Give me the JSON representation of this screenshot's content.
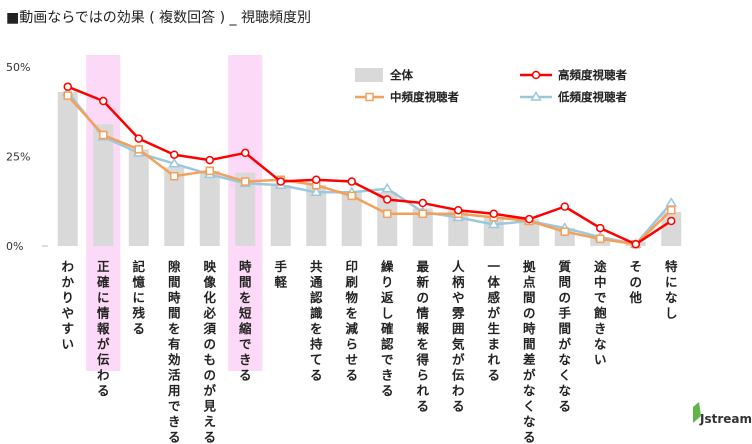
{
  "chart_data": {
    "type": "bar",
    "title": "■動画ならではの効果 ( 複数回答 ) _ 視聴頻度別",
    "yticks": [
      "50%",
      "25%",
      "0%"
    ],
    "ylim": [
      0,
      50
    ],
    "categories": [
      "わかりやすい",
      "正確に情報が伝わる",
      "記憶に残る",
      "隙間時間を有効活用できる",
      "映像化必須のものが見える",
      "時間を短縮できる",
      "手軽",
      "共通認識を持てる",
      "印刷物を減らせる",
      "繰り返し確認できる",
      "最新の情報を得られる",
      "人柄や雰囲気が伝わる",
      "一体感が生まれる",
      "拠点間の時間差がなくなる",
      "質問の手間がなくなる",
      "途中で飽きない",
      "その他",
      "特になし"
    ],
    "highlighted_categories": [
      "正確に情報が伝わる",
      "時間を短縮できる"
    ],
    "highlight_color": "#fbd9f7",
    "series": [
      {
        "name": "全体",
        "type": "bar",
        "color": "#d9d9d9",
        "values": [
          43,
          34,
          27,
          22,
          21,
          20.5,
          17,
          17,
          15,
          15,
          10.5,
          10,
          8,
          7.5,
          5,
          2.5,
          1,
          9.5
        ]
      },
      {
        "name": "高頻度視聴者",
        "type": "line",
        "color": "#ff0000",
        "marker": "circle",
        "values": [
          44.5,
          40.5,
          30,
          25.5,
          24,
          26,
          18,
          18.5,
          18,
          13,
          12,
          10,
          9,
          7.5,
          11,
          5,
          0.5,
          7
        ]
      },
      {
        "name": "中頻度視聴者",
        "type": "line",
        "color": "#f5a05a",
        "marker": "square",
        "values": [
          42,
          31,
          27,
          19.5,
          21,
          18,
          18.5,
          17,
          14,
          9,
          9,
          9,
          8,
          7,
          4,
          2,
          0.5,
          10
        ]
      },
      {
        "name": "低頻度視聴者",
        "type": "line",
        "color": "#9cc8dc",
        "marker": "triangle",
        "values": [
          43,
          30.5,
          26,
          23,
          20,
          17.5,
          17,
          15,
          15,
          16,
          9.5,
          8,
          6,
          7,
          5,
          2.5,
          0.5,
          12
        ]
      }
    ],
    "legend_position": "top-right",
    "grid": false
  },
  "branding": {
    "logo_text": "Jstream"
  }
}
